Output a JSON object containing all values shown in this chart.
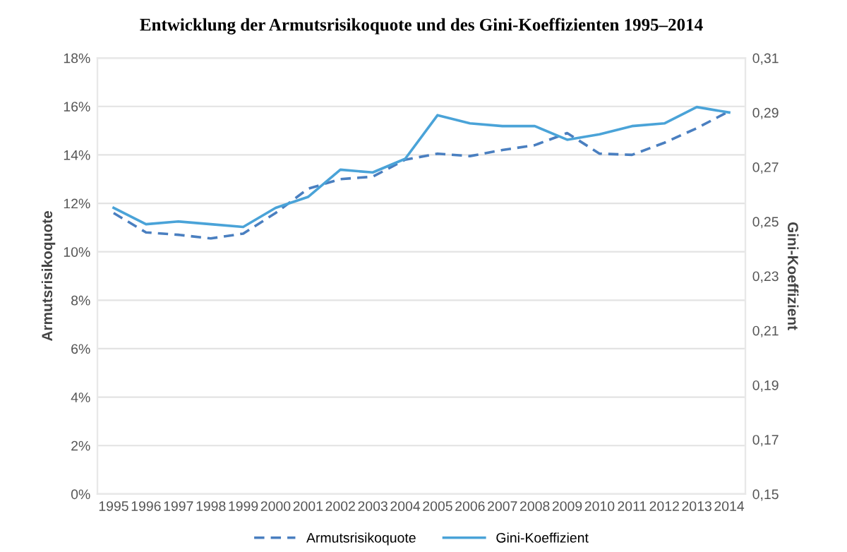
{
  "chart_data": {
    "type": "line",
    "title": "Entwicklung der Armutsrisikoquote und des Gini-Koeffizienten 1995–2014",
    "ylabel": "Armutsrisikoquote",
    "y2label": "Gini-Koeffizient",
    "categories": [
      "1995",
      "1996",
      "1997",
      "1998",
      "1999",
      "2000",
      "2001",
      "2002",
      "2003",
      "2004",
      "2005",
      "2006",
      "2007",
      "2008",
      "2009",
      "2010",
      "2011",
      "2012",
      "2013",
      "2014"
    ],
    "series": [
      {
        "name": "Armutsrisikoquote",
        "color": "#4a7fc0",
        "line_style": "dashed",
        "values": [
          11.6,
          10.8,
          10.7,
          10.55,
          10.75,
          11.6,
          12.6,
          13.0,
          13.1,
          13.8,
          14.05,
          13.95,
          14.2,
          14.4,
          14.9,
          14.05,
          14.0,
          14.5,
          15.1,
          15.8
        ]
      },
      {
        "name": "Gini-Koeffizient",
        "color": "#4aa3d8",
        "line_style": "solid",
        "axis": "y2",
        "values": [
          0.255,
          0.249,
          0.25,
          0.249,
          0.248,
          0.255,
          0.259,
          0.269,
          0.268,
          0.273,
          0.289,
          0.286,
          0.285,
          0.285,
          0.28,
          0.282,
          0.285,
          0.286,
          0.292,
          0.29
        ]
      }
    ],
    "ylim": [
      0,
      18
    ],
    "yticks": [
      {
        "value": 0,
        "label": "0%"
      },
      {
        "value": 2,
        "label": "2%"
      },
      {
        "value": 4,
        "label": "4%"
      },
      {
        "value": 6,
        "label": "6%"
      },
      {
        "value": 8,
        "label": "8%"
      },
      {
        "value": 10,
        "label": "10%"
      },
      {
        "value": 12,
        "label": "12%"
      },
      {
        "value": 14,
        "label": "14%"
      },
      {
        "value": 16,
        "label": "16%"
      },
      {
        "value": 18,
        "label": "18%"
      }
    ],
    "y2lim": [
      0.15,
      0.31
    ],
    "y2ticks": [
      {
        "value": 0.15,
        "label": "0,15"
      },
      {
        "value": 0.17,
        "label": "0,17"
      },
      {
        "value": 0.19,
        "label": "0,19"
      },
      {
        "value": 0.21,
        "label": "0,21"
      },
      {
        "value": 0.23,
        "label": "0,23"
      },
      {
        "value": 0.25,
        "label": "0,25"
      },
      {
        "value": 0.27,
        "label": "0,27"
      },
      {
        "value": 0.29,
        "label": "0,29"
      },
      {
        "value": 0.31,
        "label": "0,31"
      }
    ],
    "grid": "y",
    "legend": "bottom",
    "marker": "none"
  }
}
